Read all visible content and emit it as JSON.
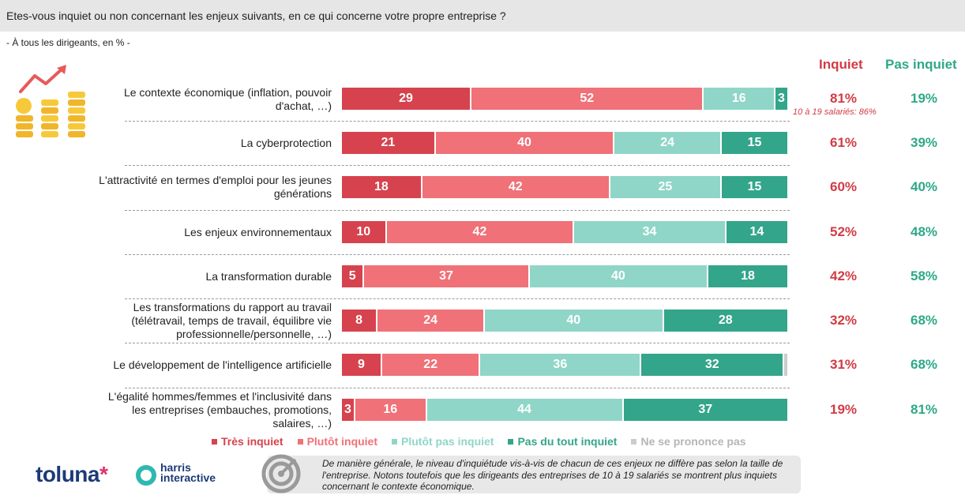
{
  "question": "Etes-vous inquiet ou non concernant les enjeux suivants, en ce qui concerne votre propre entreprise ?",
  "base": "- À tous les dirigeants, en % -",
  "columns": {
    "inquiet": "Inquiet",
    "pas_inquiet": "Pas inquiet"
  },
  "colors": {
    "tres_inquiet": "#d6434e",
    "plutot_inquiet": "#f07178",
    "plutot_pas_inquiet": "#8fd6c8",
    "pas_du_tout": "#33a58a",
    "nsp": "#cccccc",
    "inquiet_text": "#d23b45",
    "pas_inquiet_text": "#2ea887"
  },
  "chart_data": {
    "type": "bar",
    "orientation": "horizontal-stacked-100",
    "categories": [
      "Le contexte économique (inflation, pouvoir d'achat, …)",
      "La cyberprotection",
      "L'attractivité en termes d'emploi pour les jeunes générations",
      "Les enjeux environnementaux",
      "La transformation durable",
      "Les transformations du rapport au travail (télétravail, temps de travail, équilibre vie professionnelle/personnelle, …)",
      "Le développement de l'intelligence artificielle",
      "L'égalité hommes/femmes et l'inclusivité dans les entreprises (embauches, promotions, salaires, …)"
    ],
    "series": [
      {
        "name": "Très inquiet",
        "values": [
          29,
          21,
          18,
          10,
          5,
          8,
          9,
          3
        ]
      },
      {
        "name": "Plutôt inquiet",
        "values": [
          52,
          40,
          42,
          42,
          37,
          24,
          22,
          16
        ]
      },
      {
        "name": "Plutôt pas inquiet",
        "values": [
          16,
          24,
          25,
          34,
          40,
          40,
          36,
          44
        ]
      },
      {
        "name": "Pas du tout inquiet",
        "values": [
          3,
          15,
          15,
          14,
          18,
          28,
          32,
          37
        ]
      },
      {
        "name": "Ne se prononce pas",
        "values": [
          0,
          0,
          0,
          0,
          0,
          0,
          1,
          0
        ]
      }
    ],
    "totals_inquiet": [
      "81%",
      "61%",
      "60%",
      "52%",
      "42%",
      "32%",
      "31%",
      "19%"
    ],
    "totals_pas_inquiet": [
      "19%",
      "39%",
      "40%",
      "48%",
      "58%",
      "68%",
      "68%",
      "81%"
    ],
    "annotation": "10 à 19 salariés: 86%",
    "legend": [
      "Très inquiet",
      "Plutôt inquiet",
      "Plutôt pas inquiet",
      "Pas du tout inquiet",
      "Ne se prononce pas"
    ],
    "legend_position": "bottom"
  },
  "footer_note": "De manière générale, le niveau d'inquiétude vis-à-vis de chacun de ces enjeux ne diffère pas selon la taille de l'entreprise. Notons toutefois que les dirigeants des entreprises de 10 à 19 salariés se montrent plus inquiets concernant le contexte économique.",
  "logos": {
    "toluna": "toluna",
    "harris_line1": "harris",
    "harris_line2": "interactive"
  }
}
